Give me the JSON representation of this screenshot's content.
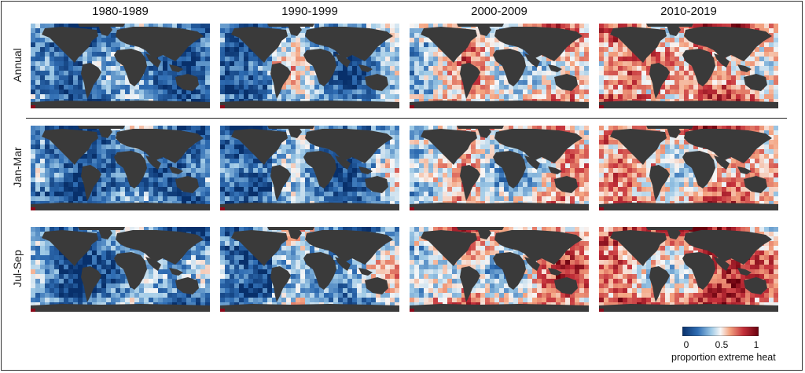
{
  "chart_data": {
    "type": "heatmap",
    "title": "",
    "columns": [
      "1980-1989",
      "1990-1999",
      "2000-2009",
      "2010-2019"
    ],
    "rows": [
      "Annual",
      "Jan-Mar",
      "Jul-Sep"
    ],
    "mean_proportion": [
      [
        0.3,
        0.36,
        0.52,
        0.64
      ],
      [
        0.28,
        0.34,
        0.5,
        0.6
      ],
      [
        0.33,
        0.4,
        0.56,
        0.68
      ]
    ],
    "colorbar": {
      "label": "proportion extreme heat",
      "ticks": [
        "0",
        "0.5",
        "1"
      ],
      "tick_values": [
        0,
        0.5,
        1
      ],
      "range": [
        0,
        1
      ],
      "colors": {
        "low": "#08306b",
        "mid": "#f7f7f7",
        "high": "#67000d"
      }
    },
    "land_color": "#3a3a3a"
  }
}
